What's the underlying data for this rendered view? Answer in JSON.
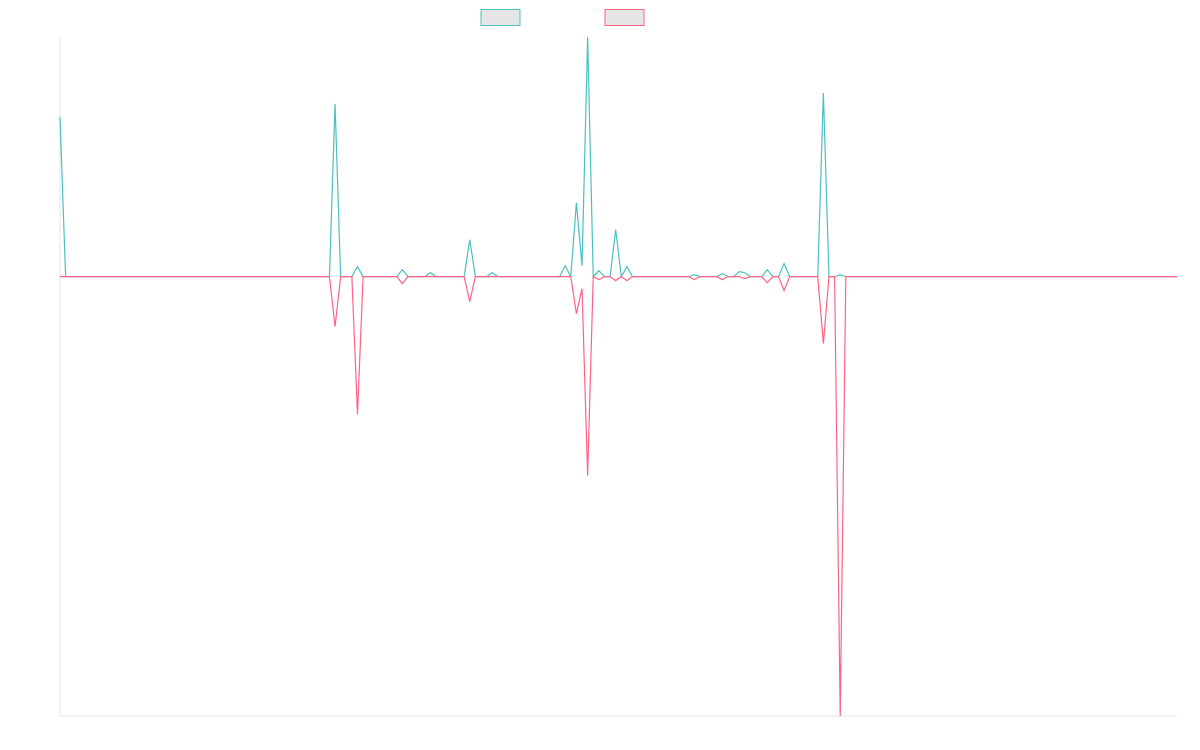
{
  "chart_data": {
    "type": "line",
    "series": [
      {
        "color": "#4bc0c0",
        "values": [
          16,
          0,
          0,
          0,
          0,
          0,
          0,
          0,
          0,
          0,
          0,
          0,
          0,
          0,
          0,
          0,
          0,
          0,
          0,
          0,
          0,
          0,
          0,
          0,
          0,
          0,
          0,
          0,
          0,
          0,
          0,
          0,
          0,
          0,
          0,
          0,
          0,
          0,
          0,
          0,
          0,
          0,
          0,
          0,
          0,
          0,
          0,
          0,
          0,
          17.3,
          0,
          0,
          0,
          1,
          0,
          0,
          0,
          0,
          0,
          0,
          0,
          0.7,
          0,
          0,
          0,
          0,
          0.4,
          0,
          0,
          0,
          0,
          0,
          0,
          3.7,
          0,
          0,
          0,
          0.4,
          0,
          0,
          0,
          0,
          0,
          0,
          0,
          0,
          0,
          0,
          0,
          0,
          1.1,
          0,
          7.4,
          1.1,
          24,
          0,
          0.6,
          0,
          0,
          4.7,
          0,
          1,
          0,
          0,
          0,
          0,
          0,
          0,
          0,
          0,
          0,
          0,
          0,
          0.2,
          0,
          0,
          0,
          0,
          0.3,
          0,
          0,
          0.5,
          0.4,
          0,
          0,
          0,
          0.7,
          0,
          0,
          1.3,
          0,
          0,
          0,
          0,
          0,
          0,
          18.4,
          0,
          0,
          0.2,
          0,
          0,
          0,
          0,
          0,
          0,
          0,
          0,
          0,
          0,
          0,
          0,
          0,
          0,
          0,
          0,
          0,
          0,
          0,
          0,
          0,
          0,
          0,
          0,
          0,
          0,
          0,
          0,
          0,
          0,
          0,
          0,
          0,
          0,
          0,
          0,
          0,
          0,
          0,
          0,
          0,
          0,
          0,
          0,
          0,
          0,
          0,
          0,
          0,
          0,
          0,
          0,
          0,
          0,
          0,
          0,
          0,
          0,
          0,
          0
        ]
      },
      {
        "color": "#ff6384",
        "values": [
          0,
          0,
          0,
          0,
          0,
          0,
          0,
          0,
          0,
          0,
          0,
          0,
          0,
          0,
          0,
          0,
          0,
          0,
          0,
          0,
          0,
          0,
          0,
          0,
          0,
          0,
          0,
          0,
          0,
          0,
          0,
          0,
          0,
          0,
          0,
          0,
          0,
          0,
          0,
          0,
          0,
          0,
          0,
          0,
          0,
          0,
          0,
          0,
          0,
          -5,
          0,
          0,
          0,
          -13.8,
          0,
          0,
          0,
          0,
          0,
          0,
          0,
          -0.7,
          0,
          0,
          0,
          0,
          0,
          0,
          0,
          0,
          0,
          0,
          0,
          -2.5,
          0,
          0,
          0,
          0,
          0,
          0,
          0,
          0,
          0,
          0,
          0,
          0,
          0,
          0,
          0,
          0,
          0,
          0,
          -3.7,
          -1.2,
          -19.9,
          0,
          -0.3,
          0,
          0,
          -0.4,
          0,
          -0.4,
          0,
          0,
          0,
          0,
          0,
          0,
          0,
          0,
          0,
          0,
          0,
          -0.3,
          0,
          0,
          0,
          0,
          -0.3,
          0,
          0,
          0,
          -0.2,
          0,
          0,
          0,
          -0.6,
          0,
          0,
          -1.4,
          0,
          0,
          0,
          0,
          0,
          0,
          -6.7,
          0,
          0,
          -44,
          0,
          0,
          0,
          0,
          0,
          0,
          0,
          0,
          0,
          0,
          0,
          0,
          0,
          0,
          0,
          0,
          0,
          0,
          0,
          0,
          0,
          0,
          0,
          0,
          0,
          0,
          0,
          0,
          0,
          0,
          0,
          0,
          0,
          0,
          0,
          0,
          0,
          0,
          0,
          0,
          0,
          0,
          0,
          0,
          0,
          0,
          0,
          0,
          0,
          0,
          0,
          0,
          0,
          0,
          0,
          0,
          0,
          0,
          0,
          0
        ]
      }
    ],
    "ylim": [
      -44,
      24
    ]
  }
}
